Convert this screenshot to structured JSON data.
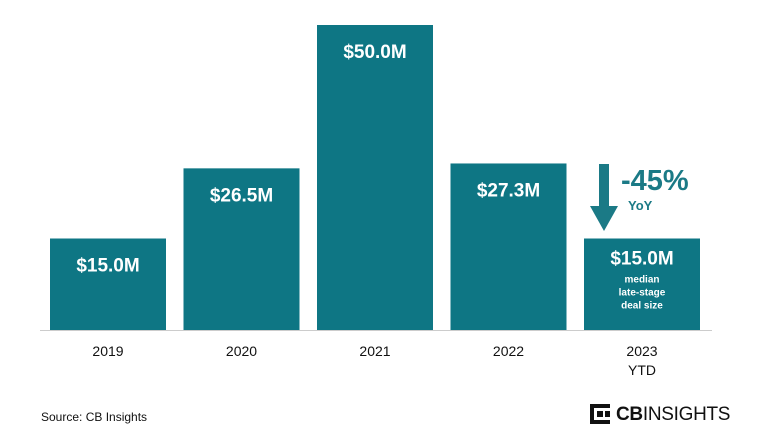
{
  "chart_data": {
    "type": "bar",
    "categories": [
      "2019",
      "2020",
      "2021",
      "2022",
      "2023\nYTD"
    ],
    "values": [
      15.0,
      26.5,
      50.0,
      27.3,
      15.0
    ],
    "value_labels": [
      "$15.0M",
      "$26.5M",
      "$50.0M",
      "$27.3M",
      "$15.0M"
    ],
    "bar_color": "#0e7684",
    "ylim": [
      0,
      50
    ],
    "grid": false,
    "annotation": {
      "bar_index": 4,
      "change": "-45%",
      "change_label": "YoY",
      "bar_note": "median\nlate-stage\ndeal size",
      "arrow_direction": "down",
      "color": "#1b7a86"
    }
  },
  "footer": {
    "source": "Source: CB Insights",
    "brand_bold": "CB",
    "brand_regular": "INSIGHTS",
    "brand_icon": "cb-insights-logo-icon"
  }
}
